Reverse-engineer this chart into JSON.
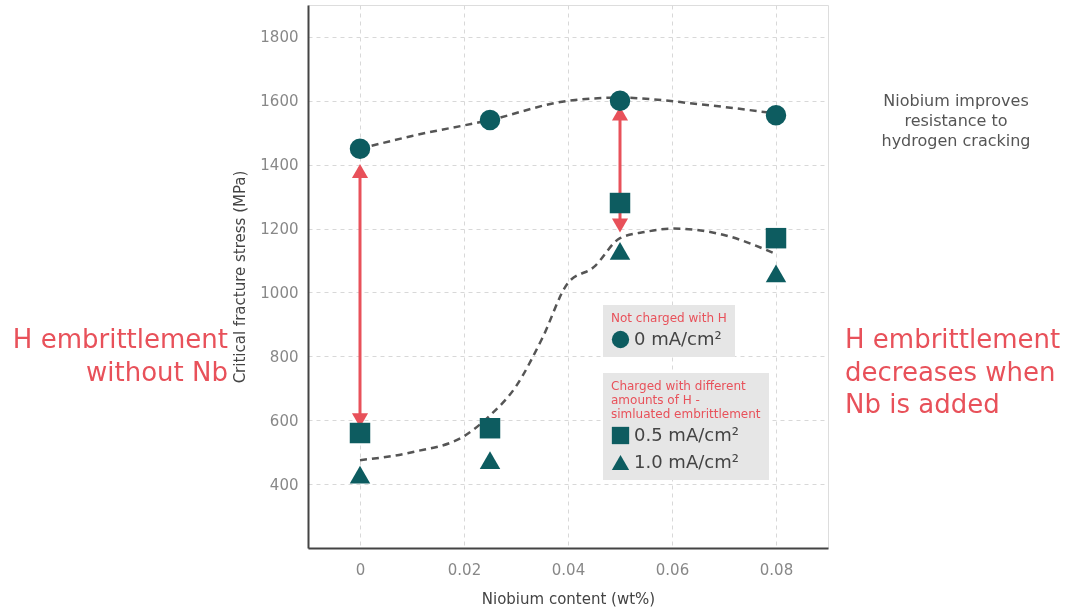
{
  "chart_data": {
    "type": "scatter",
    "xlabel": "Niobium content (wt%)",
    "ylabel": "Critical fracture stress (MPa)",
    "xlim": [
      -0.01,
      0.09
    ],
    "xticks": [
      {
        "value": 0,
        "label": "0"
      },
      0.02,
      0.04,
      0.06,
      0.08
    ],
    "ylim": [
      200,
      1900
    ],
    "yticks": [
      400,
      600,
      800,
      1000,
      1200,
      1400,
      1600,
      1800
    ],
    "grid": true,
    "legend": "bottom right",
    "legend_title": "Not charged with H",
    "series": [
      {
        "name": "0 mA/cm²",
        "marker": "circle",
        "color": "#0d5c60",
        "x": [
          0,
          0.025,
          0.05,
          0.08
        ],
        "values": [
          1450,
          1540,
          1600,
          1555
        ]
      },
      {
        "name": "0.5 mA/cm²",
        "marker": "square",
        "color": "#0d5c60",
        "x": [
          0,
          0.025,
          0.05,
          0.08
        ],
        "values": [
          560,
          575,
          1280,
          1170
        ]
      },
      {
        "name": "1.0 mA/cm²",
        "marker": "triangle",
        "color": "#0d5c60",
        "x": [
          0,
          0.025,
          0.05,
          0.08
        ],
        "values": [
          430,
          475,
          1130,
          1060
        ]
      },
      {
        "type": "line",
        "line_style": "dashed",
        "marker": "none",
        "color": "#555555",
        "x": [
          0,
          0.01,
          0.025,
          0.04,
          0.05,
          0.065,
          0.08
        ],
        "values": [
          1450,
          1490,
          1540,
          1600,
          1610,
          1590,
          1560
        ]
      },
      {
        "type": "line",
        "line_style": "dashed",
        "marker": "none",
        "color": "#555555",
        "x": [
          0,
          0.01,
          0.02,
          0.025,
          0.03,
          0.035,
          0.04,
          0.045,
          0.05,
          0.055,
          0.06,
          0.07,
          0.08
        ],
        "values": [
          475,
          500,
          550,
          615,
          706,
          855,
          1030,
          1080,
          1170,
          1190,
          1200,
          1180,
          1120
        ]
      },
      {
        "type": "line",
        "line_style": "solid",
        "marker": "triangle",
        "color": "#e8515a",
        "x": [
          0,
          0
        ],
        "values": [
          600,
          1380
        ]
      },
      {
        "type": "line",
        "line_style": "solid",
        "marker": "triangle",
        "color": "#e8515a",
        "x": [
          0.05,
          0.05
        ],
        "values": [
          1210,
          1560
        ]
      }
    ],
    "annotations": [
      "H embrittlement\nwithout Nb",
      "H embrittlement\ndecreases when\nNb is added",
      "Niobium improves\nresistance to\nhydrogen cracking",
      "Charged with different\namounts of H -\nsimluated embrittlement"
    ]
  }
}
